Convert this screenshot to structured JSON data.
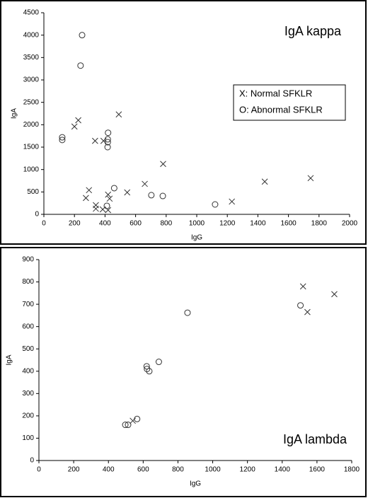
{
  "chart_data": [
    {
      "type": "scatter",
      "title": "IgA kappa",
      "x_label": "IgG",
      "y_label": "IgA",
      "xlim": [
        0,
        2000
      ],
      "xticks": [
        0,
        200,
        400,
        600,
        800,
        1000,
        1200,
        1400,
        1600,
        1800,
        2000
      ],
      "ylim": [
        0,
        4500
      ],
      "yticks": [
        0,
        500,
        1000,
        1500,
        2000,
        2500,
        3000,
        3500,
        4000,
        4500
      ],
      "grid": false,
      "legend": "right",
      "series": [
        {
          "name": "X: Normal SFKLR",
          "marker": "x",
          "color": "#333333",
          "x": [
            200,
            225,
            335,
            490,
            390,
            295,
            275,
            340,
            340,
            385,
            420,
            430,
            420,
            545,
            660,
            780,
            1230,
            1445,
            1745
          ],
          "values": [
            1960,
            2100,
            1640,
            2230,
            1640,
            540,
            365,
            205,
            125,
            110,
            440,
            350,
            95,
            490,
            680,
            1125,
            285,
            730,
            808
          ]
        },
        {
          "name": "O: Abnormal SFKLR",
          "marker": "o",
          "color": "#333333",
          "x": [
            250,
            240,
            120,
            120,
            420,
            418,
            418,
            417,
            460,
            412,
            703,
            778,
            1120
          ],
          "values": [
            4000,
            3320,
            1720,
            1660,
            1820,
            1675,
            1610,
            1500,
            585,
            190,
            428,
            410,
            221
          ]
        }
      ]
    },
    {
      "type": "scatter",
      "title": "IgA lambda",
      "x_label": "IgG",
      "y_label": "IgA",
      "xlim": [
        0,
        1800
      ],
      "xticks": [
        0,
        200,
        400,
        600,
        800,
        1000,
        1200,
        1400,
        1600,
        1800
      ],
      "ylim": [
        0,
        900
      ],
      "yticks": [
        0,
        100,
        200,
        300,
        400,
        500,
        600,
        700,
        800,
        900
      ],
      "grid": false,
      "series": [
        {
          "marker": "x",
          "color": "#333333",
          "x": [
            540,
            1520,
            1545,
            1700
          ],
          "values": [
            178,
            780,
            665,
            745
          ]
        },
        {
          "marker": "o",
          "color": "#333333",
          "x": [
            497,
            513,
            565,
            620,
            622,
            635,
            690,
            855,
            1505
          ],
          "values": [
            160,
            160,
            186,
            422,
            410,
            400,
            442,
            662,
            695
          ]
        }
      ]
    }
  ]
}
